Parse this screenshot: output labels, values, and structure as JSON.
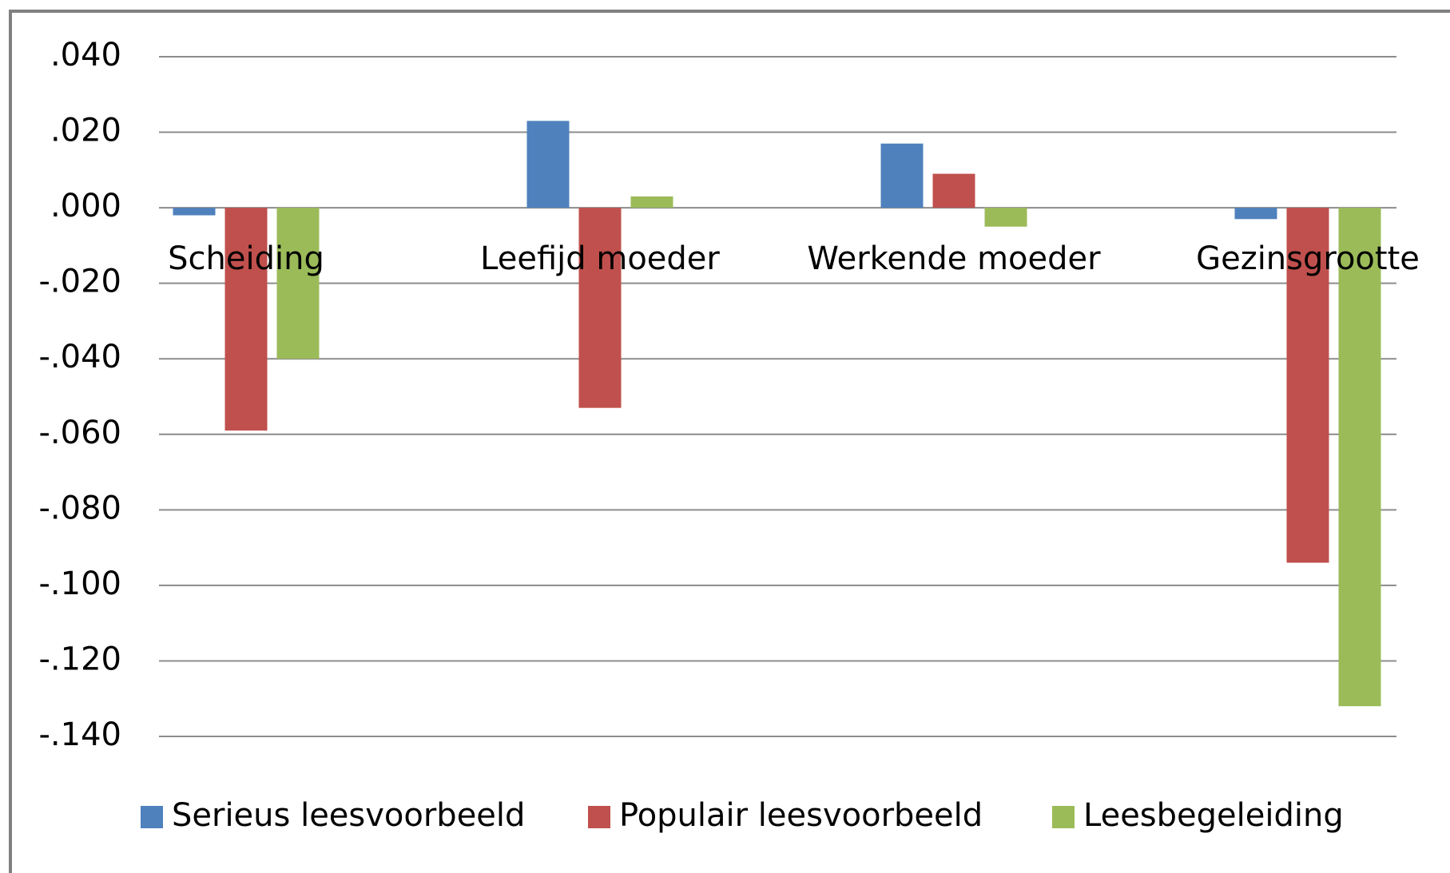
{
  "chart_data": {
    "type": "bar",
    "categories": [
      "Scheiding",
      "Leefijd moeder",
      "Werkende moeder",
      "Gezinsgrootte"
    ],
    "series": [
      {
        "name": "Serieus leesvoorbeeld",
        "color": "#4f81bd",
        "values": [
          -0.002,
          0.023,
          0.017,
          -0.003
        ]
      },
      {
        "name": "Populair leesvoorbeeld",
        "color": "#c0504d",
        "values": [
          -0.059,
          -0.053,
          0.009,
          -0.094
        ]
      },
      {
        "name": "Leesbegeleiding",
        "color": "#9bbb59",
        "values": [
          -0.04,
          0.003,
          -0.005,
          -0.132
        ]
      }
    ],
    "ylim": [
      -0.14,
      0.04
    ],
    "yticks": [
      {
        "value": 0.04,
        "label": ".040"
      },
      {
        "value": 0.02,
        "label": ".020"
      },
      {
        "value": 0,
        "label": ".000"
      },
      {
        "value": -0.02,
        "label": "-.020"
      },
      {
        "value": -0.04,
        "label": "-.040"
      },
      {
        "value": -0.06,
        "label": "-.060"
      },
      {
        "value": -0.08,
        "label": "-.080"
      },
      {
        "value": -0.1,
        "label": "-.100"
      },
      {
        "value": -0.12,
        "label": "-.120"
      },
      {
        "value": -0.14,
        "label": "-.140"
      }
    ],
    "grid": true,
    "legend": "bottom"
  }
}
